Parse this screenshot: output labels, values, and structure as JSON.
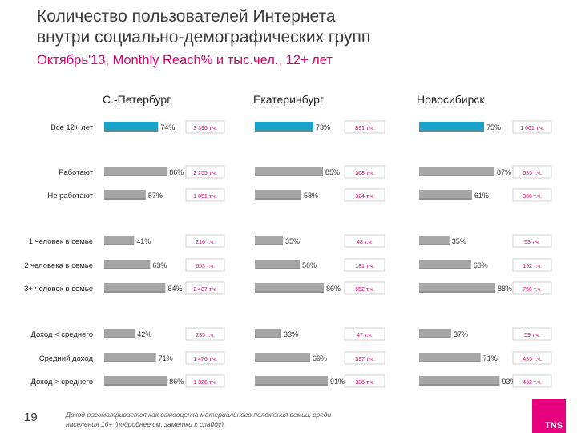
{
  "title_line1": "Количество пользователей Интернета",
  "title_line2": "внутри социально-демографических групп",
  "subtitle": "Октябрь'13, Monthly Reach% и тыс.чел., 12+ лет",
  "page_number": "19",
  "footnote_line1": "Доход рассматривается как самооценка материального положения семьи, среди",
  "footnote_line2": "населения 16+ (подробнее см. заметки к слайду).",
  "logo_text": "TNS",
  "colors": {
    "accent": "#e6007e",
    "bar_first": "#1aa3c8",
    "bar": "#a6a6a6"
  },
  "chart_data": {
    "type": "bar",
    "orientation": "horizontal",
    "xlim": [
      0,
      100
    ],
    "categories": [
      "Все 12+ лет",
      "Работают",
      "Не работают",
      "1 человек в семье",
      "2 человека в семье",
      "3+ человек в семье",
      "Доход < среднего",
      "Средний доход",
      "Доход > среднего"
    ],
    "series": [
      {
        "name": "С.-Петербург",
        "values": [
          74,
          86,
          57,
          41,
          63,
          84,
          42,
          71,
          86
        ],
        "users": [
          "3 396 т.ч.",
          "2 255 т.ч.",
          "1 051 т.ч.",
          "216 т.ч.",
          "653 т.ч.",
          "2 437 т.ч.",
          "235 т.ч.",
          "1 476 т.ч.",
          "1 326 т.ч."
        ]
      },
      {
        "name": "Екатеринбург",
        "values": [
          73,
          85,
          58,
          35,
          56,
          86,
          33,
          69,
          91
        ],
        "users": [
          "891 т.ч.",
          "568 т.ч.",
          "324 т.ч.",
          "48 т.ч.",
          "181 т.ч.",
          "652 т.ч.",
          "47 т.ч.",
          "397 т.ч.",
          "386 т.ч."
        ]
      },
      {
        "name": "Новосибирск",
        "values": [
          75,
          87,
          61,
          35,
          60,
          88,
          37,
          71,
          93
        ],
        "users": [
          "1 061 т.ч.",
          "635 т.ч.",
          "366 т.ч.",
          "53 т.ч.",
          "192 т.ч.",
          "756 т.ч.",
          "59 т.ч.",
          "435 т.ч.",
          "432 т.ч."
        ]
      }
    ]
  }
}
